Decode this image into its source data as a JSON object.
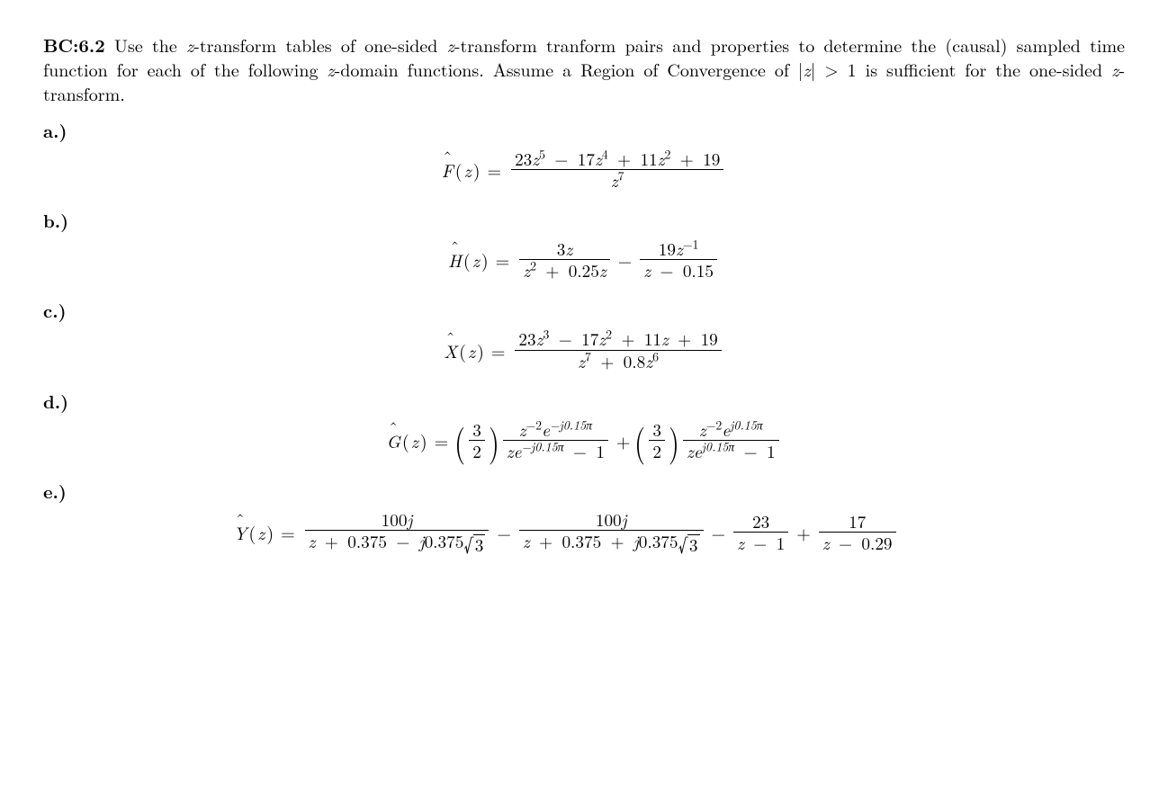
{
  "problem": {
    "id": "BC:6.2",
    "statement_pre": "Use the ",
    "var1": "z",
    "statement_mid1": "-transform tables of one-sided ",
    "var2": "z",
    "statement_mid2": "-transform tranform pairs and properties to determine the (causal) sampled time function for each of the following ",
    "var3": "z",
    "statement_mid3": "-domain functions.  Assume a Region of Convergence of |",
    "var4": "z",
    "statement_mid4": "| > 1 is sufficient for the one-sided ",
    "var5": "z",
    "statement_end": "-transform."
  },
  "a": {
    "label": "a.)",
    "lhs_fn": "F",
    "lhs_arg": "z",
    "num_t1_c": "23",
    "num_t1_v": "z",
    "num_t1_e": "5",
    "num_t2_c": "17",
    "num_t2_v": "z",
    "num_t2_e": "4",
    "num_t3_c": "11",
    "num_t3_v": "z",
    "num_t3_e": "2",
    "num_t4_c": "19",
    "den_v": "z",
    "den_e": "7"
  },
  "b": {
    "label": "b.)",
    "lhs_fn": "H",
    "lhs_arg": "z",
    "f1_num_c": "3",
    "f1_num_v": "z",
    "f1_den_t1_v": "z",
    "f1_den_t1_e": "2",
    "f1_den_t2_c": "0.25",
    "f1_den_t2_v": "z",
    "f2_num_c": "19",
    "f2_num_v": "z",
    "f2_num_e": "−1",
    "f2_den_v": "z",
    "f2_den_c": "0.15"
  },
  "c": {
    "label": "c.)",
    "lhs_fn": "X",
    "lhs_arg": "z",
    "num_t1_c": "23",
    "num_t1_v": "z",
    "num_t1_e": "3",
    "num_t2_c": "17",
    "num_t2_v": "z",
    "num_t2_e": "2",
    "num_t3_c": "11",
    "num_t3_v": "z",
    "num_t4_c": "19",
    "den_t1_v": "z",
    "den_t1_e": "7",
    "den_t2_c": "0.8",
    "den_t2_v": "z",
    "den_t2_e": "6"
  },
  "d": {
    "label": "d.)",
    "lhs_fn": "G",
    "lhs_arg": "z",
    "coef_num": "3",
    "coef_den": "2",
    "t1_num_v": "z",
    "t1_num_e1": "−2",
    "t1_num_ebase": "e",
    "t1_num_e2": "−j0.15π",
    "t1_den_v": "z",
    "t1_den_ebase": "e",
    "t1_den_e": "−j0.15π",
    "t1_den_c": "1",
    "t2_num_v": "z",
    "t2_num_e1": "−2",
    "t2_num_ebase": "e",
    "t2_num_e2": "j0.15π",
    "t2_den_v": "z",
    "t2_den_ebase": "e",
    "t2_den_e": "j0.15π",
    "t2_den_c": "1"
  },
  "e": {
    "label": "e.)",
    "lhs_fn": "Y",
    "lhs_arg": "z",
    "f1_num_c": "100",
    "f1_num_j": "j",
    "f12_den_v": "z",
    "f12_den_c1": "0.375",
    "f12_den_j": "j",
    "f12_den_c2": "0.375",
    "f12_den_rad": "3",
    "f3_num": "23",
    "f3_den_v": "z",
    "f3_den_c": "1",
    "f4_num": "17",
    "f4_den_v": "z",
    "f4_den_c": "0.29"
  },
  "symbols": {
    "minus": "−",
    "plus": "+",
    "eq": "=",
    "gt": ">",
    "lparen": "(",
    "rparen": ")"
  }
}
